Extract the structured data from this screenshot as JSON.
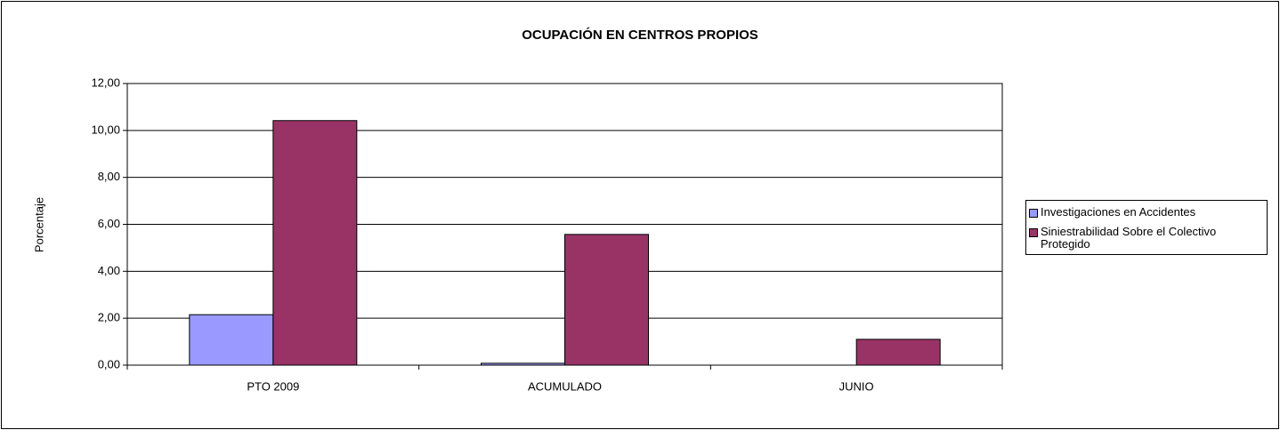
{
  "chart_data": {
    "type": "bar",
    "title": "OCUPACIÓN EN CENTROS PROPIOS",
    "y_label": "Porcentaje",
    "categories": [
      "PTO 2009",
      "ACUMULADO",
      "JUNIO"
    ],
    "series": [
      {
        "name": "Investigaciones en Accidentes",
        "color": "#9999ff",
        "values": [
          2.15,
          0.08,
          0
        ]
      },
      {
        "name": "Siniestrabilidad Sobre el Colectivo Protegido",
        "color": "#993366",
        "values": [
          10.42,
          5.57,
          1.1
        ]
      }
    ],
    "ylim": [
      0,
      12
    ],
    "yticks": [
      {
        "value": 0,
        "label": "0,00"
      },
      {
        "value": 2,
        "label": "2,00"
      },
      {
        "value": 4,
        "label": "4,00"
      },
      {
        "value": 6,
        "label": "6,00"
      },
      {
        "value": 8,
        "label": "8,00"
      },
      {
        "value": 10,
        "label": "10,00"
      },
      {
        "value": 12,
        "label": "12,00"
      }
    ],
    "grid": true,
    "legend": "right"
  }
}
